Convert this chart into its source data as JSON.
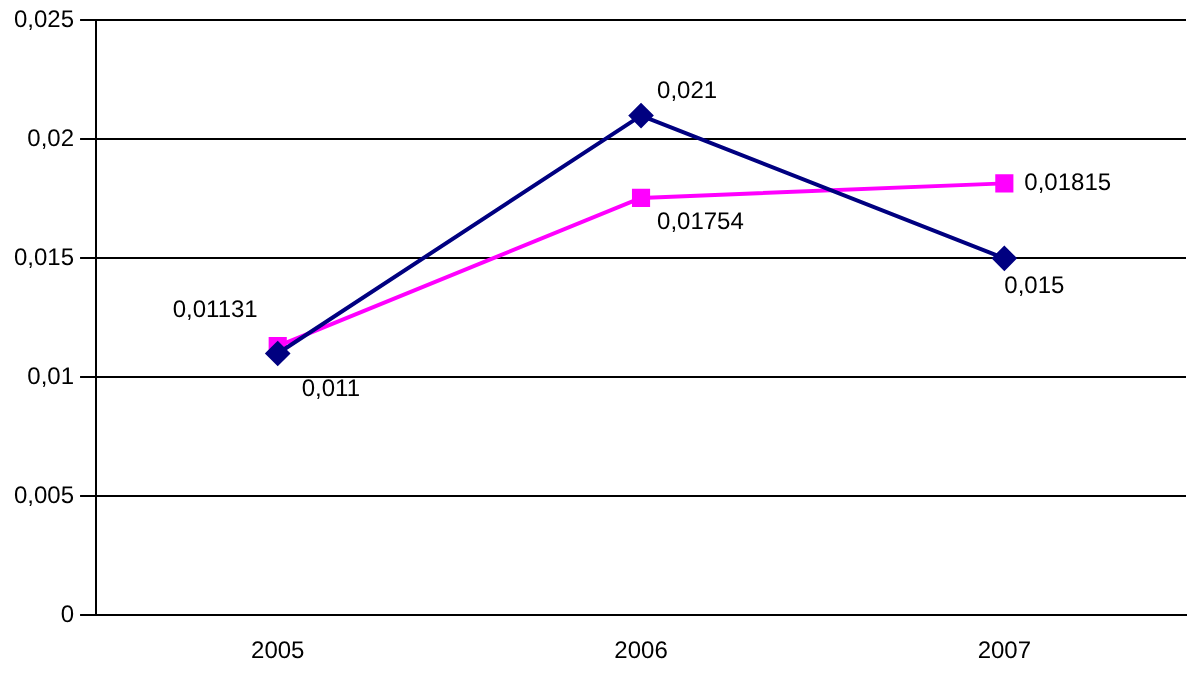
{
  "chart_data": {
    "type": "line",
    "categories": [
      "2005",
      "2006",
      "2007"
    ],
    "series": [
      {
        "color": "#000080",
        "marker": "diamond",
        "values": [
          0.011,
          0.021,
          0.015
        ],
        "value_labels": [
          "0,011",
          "0,021",
          "0,015"
        ]
      },
      {
        "color": "#ff00ff",
        "marker": "square",
        "values": [
          0.01131,
          0.01754,
          0.01815
        ],
        "value_labels": [
          "0,01131",
          "0,01754",
          "0,01815"
        ]
      }
    ],
    "ylim": [
      0,
      0.025
    ],
    "yticks": [
      {
        "value": 0,
        "label": "0"
      },
      {
        "value": 0.005,
        "label": "0,005"
      },
      {
        "value": 0.01,
        "label": "0,01"
      },
      {
        "value": 0.015,
        "label": "0,015"
      },
      {
        "value": 0.02,
        "label": "0,02"
      },
      {
        "value": 0.025,
        "label": "0,025"
      }
    ],
    "grid": "y",
    "legend": false
  }
}
